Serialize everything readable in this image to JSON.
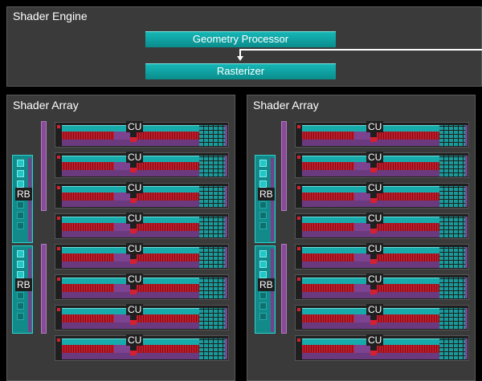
{
  "shader_engine": {
    "title": "Shader Engine",
    "geometry_processor_label": "Geometry Processor",
    "rasterizer_label": "Rasterizer"
  },
  "shader_arrays": [
    {
      "title": "Shader Array",
      "rb_labels": [
        "RB",
        "RB"
      ],
      "cu_labels": [
        "CU",
        "CU",
        "CU",
        "CU",
        "CU",
        "CU",
        "CU",
        "CU"
      ]
    },
    {
      "title": "Shader Array",
      "rb_labels": [
        "RB",
        "RB"
      ],
      "cu_labels": [
        "CU",
        "CU",
        "CU",
        "CU",
        "CU",
        "CU",
        "CU",
        "CU"
      ]
    }
  ],
  "colors": {
    "background": "#000000",
    "panel": "#3a3a3a",
    "cyan_unit": "#16b6b6",
    "purple_unit": "#7d4290",
    "red_unit": "#c11b2a"
  }
}
